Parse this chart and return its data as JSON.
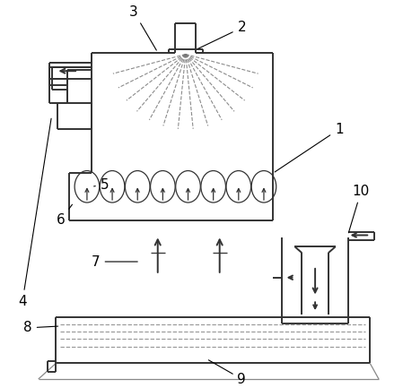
{
  "bg_color": "#ffffff",
  "line_color": "#333333",
  "gray_color": "#888888",
  "lw_main": 1.4,
  "lw_thin": 0.9,
  "spray_color": "#777777",
  "pool_dash_color": "#999999"
}
